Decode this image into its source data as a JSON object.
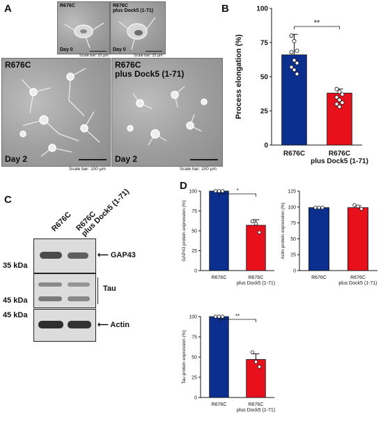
{
  "panels": {
    "A": "A",
    "B": "B",
    "C": "C",
    "D": "D"
  },
  "colors": {
    "r676c": "#0b2f8f",
    "dock5": "#e8101a"
  },
  "panel_a": {
    "small": [
      {
        "title": "R676C",
        "day": "Day 0",
        "scale": "Scale bar: 25 µm"
      },
      {
        "title": "R676C\nplus Dock5 (1-71)",
        "day": "Day 0",
        "scale": "Scale bar: 25 µm"
      }
    ],
    "large": [
      {
        "title": "R676C",
        "day": "Day 2",
        "scale": "Scale bar: 100 µm"
      },
      {
        "title": "R676C\nplus Dock5 (1-71)",
        "day": "Day 2",
        "scale": "Scale bar: 100 µm"
      }
    ]
  },
  "panel_c": {
    "lanes": [
      "R676C",
      "R676C\nplus Dock5 (1-71)"
    ],
    "bands": [
      "GAP43",
      "Tau",
      "Actin"
    ],
    "markers": [
      "35 kDa",
      "45 kDa",
      "45 kDa"
    ]
  },
  "chart_data": [
    {
      "id": "process-elongation",
      "type": "bar",
      "categories": [
        "R676C",
        "R676C\nplus Dock5 (1-71)"
      ],
      "values": [
        66,
        38
      ],
      "errors": [
        15,
        3
      ],
      "points": [
        [
          80,
          76,
          69,
          68,
          62,
          60,
          57,
          55,
          52
        ],
        [
          41,
          39,
          37,
          35,
          33,
          31,
          30,
          28
        ]
      ],
      "ylabel": "Process elongation (%)",
      "ylim": [
        0,
        100
      ],
      "yticks": [
        0,
        25,
        50,
        75,
        100
      ],
      "significance": "**"
    },
    {
      "id": "gap43",
      "type": "bar",
      "categories": [
        "R676C",
        "R676C\nplus Dock5 (1-71)"
      ],
      "values": [
        100,
        57
      ],
      "errors": [
        0,
        7
      ],
      "points": [
        [
          100,
          100,
          100
        ],
        [
          62,
          59,
          48
        ]
      ],
      "ylabel": "GAP43 protein expression (%)",
      "ylim": [
        0,
        100
      ],
      "yticks": [
        0,
        25,
        50,
        75,
        100
      ],
      "significance": "*"
    },
    {
      "id": "actin",
      "type": "bar",
      "categories": [
        "R676C",
        "R676C\nplus Dock5 (1-71)"
      ],
      "values": [
        99,
        99
      ],
      "errors": [
        0,
        3
      ],
      "points": [
        [
          99,
          99,
          99
        ],
        [
          103,
          101,
          97
        ]
      ],
      "ylabel": "Actin protein expression (%)",
      "ylim": [
        0,
        125
      ],
      "yticks": [
        0,
        25,
        50,
        75,
        100,
        125
      ],
      "significance": ""
    },
    {
      "id": "tau",
      "type": "bar",
      "categories": [
        "R676C",
        "R676C\nplus Dock5 (1-71)"
      ],
      "values": [
        100,
        47
      ],
      "errors": [
        0,
        7
      ],
      "points": [
        [
          100,
          100,
          100
        ],
        [
          56,
          44,
          38
        ]
      ],
      "ylabel": "Tau protein expression (%)",
      "ylim": [
        0,
        100
      ],
      "yticks": [
        0,
        25,
        50,
        75,
        100
      ],
      "significance": "**"
    }
  ]
}
